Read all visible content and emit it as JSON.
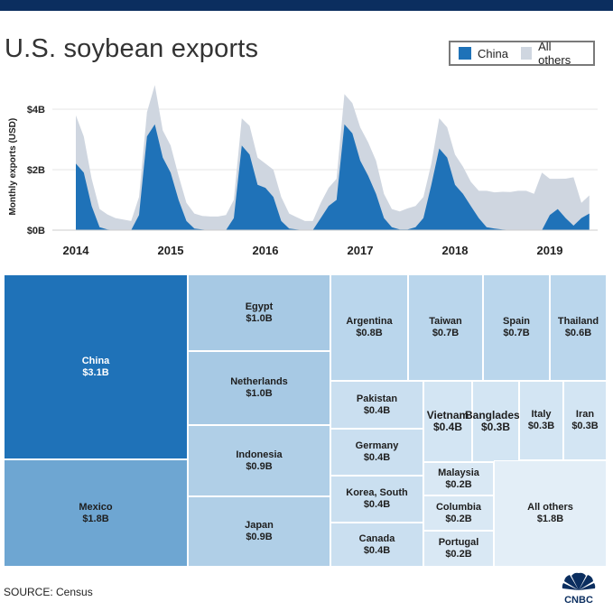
{
  "title": "U.S. soybean exports",
  "legend": [
    {
      "label": "China",
      "color": "#1f72b8"
    },
    {
      "label": "All others",
      "color": "#cfd6e0"
    }
  ],
  "source": "SOURCE: Census",
  "logo_text": "CNBC",
  "chart_data": [
    {
      "type": "area",
      "title": "U.S. soybean exports",
      "xlabel": "",
      "ylabel": "Monthly exports (USD)",
      "y_ticks": [
        "$0B",
        "$2B",
        "$4B"
      ],
      "y_tick_values": [
        0,
        2,
        4
      ],
      "ylim": [
        0,
        5
      ],
      "x_ticks": [
        "2014",
        "2015",
        "2016",
        "2017",
        "2018",
        "2019"
      ],
      "x": [
        "2014-01",
        "2014-02",
        "2014-03",
        "2014-04",
        "2014-05",
        "2014-06",
        "2014-07",
        "2014-08",
        "2014-09",
        "2014-10",
        "2014-11",
        "2014-12",
        "2015-01",
        "2015-02",
        "2015-03",
        "2015-04",
        "2015-05",
        "2015-06",
        "2015-07",
        "2015-08",
        "2015-09",
        "2015-10",
        "2015-11",
        "2015-12",
        "2016-01",
        "2016-02",
        "2016-03",
        "2016-04",
        "2016-05",
        "2016-06",
        "2016-07",
        "2016-08",
        "2016-09",
        "2016-10",
        "2016-11",
        "2016-12",
        "2017-01",
        "2017-02",
        "2017-03",
        "2017-04",
        "2017-05",
        "2017-06",
        "2017-07",
        "2017-08",
        "2017-09",
        "2017-10",
        "2017-11",
        "2017-12",
        "2018-01",
        "2018-02",
        "2018-03",
        "2018-04",
        "2018-05",
        "2018-06",
        "2018-07",
        "2018-08",
        "2018-09",
        "2018-10",
        "2018-11",
        "2018-12",
        "2019-01",
        "2019-02",
        "2019-03",
        "2019-04",
        "2019-05",
        "2019-06"
      ],
      "stacked": true,
      "series": [
        {
          "name": "China",
          "color": "#1f72b8",
          "values": [
            2.2,
            1.9,
            0.8,
            0.1,
            0.02,
            0.0,
            0.0,
            0.0,
            0.5,
            3.1,
            3.5,
            2.4,
            1.9,
            1.0,
            0.3,
            0.05,
            0.02,
            0.0,
            0.0,
            0.0,
            0.4,
            2.8,
            2.5,
            1.5,
            1.4,
            1.1,
            0.3,
            0.05,
            0.02,
            0.0,
            0.0,
            0.4,
            0.8,
            1.0,
            3.5,
            3.2,
            2.3,
            1.8,
            1.2,
            0.4,
            0.1,
            0.02,
            0.02,
            0.1,
            0.4,
            1.5,
            2.7,
            2.4,
            1.5,
            1.2,
            0.8,
            0.4,
            0.1,
            0.05,
            0.02,
            0.01,
            0.0,
            0.0,
            0.0,
            0.0,
            0.5,
            0.7,
            0.4,
            0.15,
            0.4,
            0.55
          ]
        },
        {
          "name": "All others",
          "color": "#cfd6e0",
          "values": [
            1.6,
            1.2,
            0.9,
            0.6,
            0.5,
            0.4,
            0.35,
            0.3,
            0.6,
            0.8,
            1.3,
            0.9,
            0.9,
            0.8,
            0.6,
            0.5,
            0.45,
            0.45,
            0.45,
            0.5,
            0.6,
            0.9,
            0.95,
            0.9,
            0.8,
            0.9,
            0.8,
            0.5,
            0.4,
            0.3,
            0.3,
            0.5,
            0.6,
            0.7,
            1.0,
            1.0,
            1.1,
            1.1,
            1.1,
            0.8,
            0.6,
            0.6,
            0.7,
            0.7,
            0.7,
            0.7,
            1.0,
            1.0,
            1.0,
            0.9,
            0.8,
            0.9,
            1.2,
            1.2,
            1.25,
            1.25,
            1.3,
            1.3,
            1.2,
            1.9,
            1.2,
            1.0,
            1.3,
            1.6,
            0.5,
            0.6
          ]
        }
      ]
    },
    {
      "type": "treemap",
      "items": [
        {
          "label": "China",
          "value": "$3.1B",
          "color": "#1f72b8",
          "text": "light"
        },
        {
          "label": "Mexico",
          "value": "$1.8B",
          "color": "#6ea6d2"
        },
        {
          "label": "Egypt",
          "value": "$1.0B",
          "color": "#a7c9e4"
        },
        {
          "label": "Netherlands",
          "value": "$1.0B",
          "color": "#a7c9e4"
        },
        {
          "label": "Indonesia",
          "value": "$0.9B",
          "color": "#b0cfe7"
        },
        {
          "label": "Japan",
          "value": "$0.9B",
          "color": "#b0cfe7"
        },
        {
          "label": "Argentina",
          "value": "$0.8B",
          "color": "#bad6ec"
        },
        {
          "label": "Taiwan",
          "value": "$0.7B",
          "color": "#bad6ec"
        },
        {
          "label": "Spain",
          "value": "$0.7B",
          "color": "#bad6ec"
        },
        {
          "label": "Thailand",
          "value": "$0.6B",
          "color": "#bad6ec"
        },
        {
          "label": "Pakistan",
          "value": "$0.4B",
          "color": "#cadff0"
        },
        {
          "label": "Germany",
          "value": "$0.4B",
          "color": "#cadff0"
        },
        {
          "label": "Korea, South",
          "value": "$0.4B",
          "color": "#cadff0"
        },
        {
          "label": "Canada",
          "value": "$0.4B",
          "color": "#cadff0"
        },
        {
          "label": "Vietnam",
          "value": "$0.4B",
          "color": "#d3e5f3"
        },
        {
          "label": "Bangladesh",
          "value": "$0.3B",
          "color": "#d3e5f3"
        },
        {
          "label": "Italy",
          "value": "$0.3B",
          "color": "#d3e5f3"
        },
        {
          "label": "Iran",
          "value": "$0.3B",
          "color": "#d3e5f3"
        },
        {
          "label": "Malaysia",
          "value": "$0.2B",
          "color": "#d9e8f4"
        },
        {
          "label": "Columbia",
          "value": "$0.2B",
          "color": "#d9e8f4"
        },
        {
          "label": "Portugal",
          "value": "$0.2B",
          "color": "#d9e8f4"
        },
        {
          "label": "All others",
          "value": "$1.8B",
          "color": "#e3eef7"
        }
      ]
    }
  ]
}
